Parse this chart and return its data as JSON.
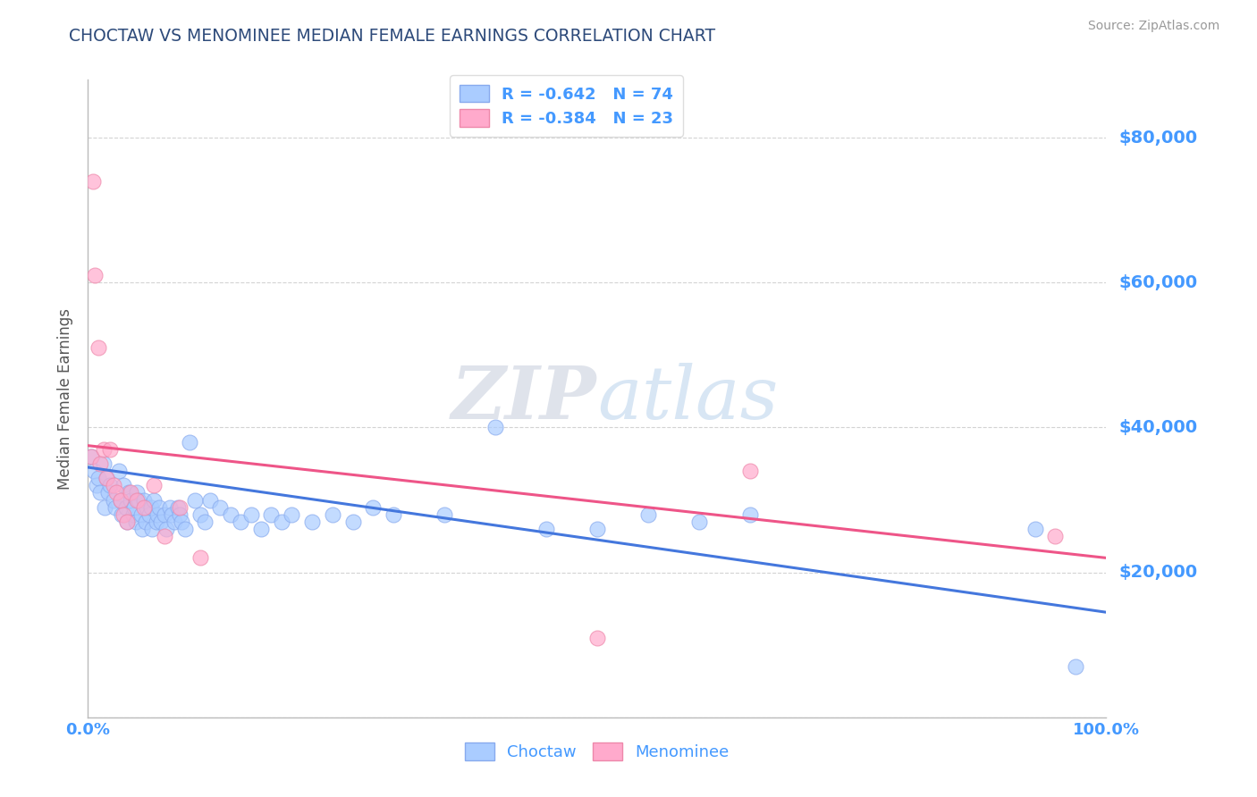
{
  "title": "CHOCTAW VS MENOMINEE MEDIAN FEMALE EARNINGS CORRELATION CHART",
  "source_text": "Source: ZipAtlas.com",
  "ylabel": "Median Female Earnings",
  "xlim": [
    0,
    1.0
  ],
  "ylim": [
    0,
    88000
  ],
  "yticks": [
    0,
    20000,
    40000,
    60000,
    80000
  ],
  "ytick_labels": [
    "",
    "$20,000",
    "$40,000",
    "$60,000",
    "$80,000"
  ],
  "xtick_labels": [
    "0.0%",
    "100.0%"
  ],
  "background_color": "#ffffff",
  "grid_color": "#c8c8c8",
  "title_color": "#2d4a7a",
  "axis_label_color": "#555555",
  "tick_label_color": "#4499ff",
  "source_color": "#999999",
  "choctaw_color": "#aaccff",
  "menominee_color": "#ffaacc",
  "choctaw_edge_color": "#88aaee",
  "menominee_edge_color": "#ee88aa",
  "choctaw_line_color": "#4477dd",
  "menominee_line_color": "#ee5588",
  "legend_choctaw_text": "R = -0.642   N = 74",
  "legend_menominee_text": "R = -0.384   N = 23",
  "legend_label_choctaw": "Choctaw",
  "legend_label_menominee": "Menominee",
  "choctaw_x": [
    0.003,
    0.006,
    0.008,
    0.01,
    0.012,
    0.015,
    0.016,
    0.018,
    0.02,
    0.022,
    0.025,
    0.027,
    0.03,
    0.032,
    0.033,
    0.035,
    0.037,
    0.038,
    0.04,
    0.042,
    0.044,
    0.045,
    0.047,
    0.048,
    0.05,
    0.052,
    0.053,
    0.055,
    0.057,
    0.058,
    0.06,
    0.062,
    0.063,
    0.065,
    0.067,
    0.068,
    0.07,
    0.072,
    0.075,
    0.077,
    0.08,
    0.082,
    0.085,
    0.088,
    0.09,
    0.092,
    0.095,
    0.1,
    0.105,
    0.11,
    0.115,
    0.12,
    0.13,
    0.14,
    0.15,
    0.16,
    0.17,
    0.18,
    0.19,
    0.2,
    0.22,
    0.24,
    0.26,
    0.28,
    0.3,
    0.35,
    0.4,
    0.45,
    0.5,
    0.55,
    0.6,
    0.65,
    0.93,
    0.97
  ],
  "choctaw_y": [
    36000,
    34000,
    32000,
    33000,
    31000,
    35000,
    29000,
    33000,
    31000,
    32000,
    30000,
    29000,
    34000,
    30000,
    28000,
    32000,
    29000,
    27000,
    31000,
    30000,
    28000,
    29000,
    27000,
    31000,
    30000,
    28000,
    26000,
    30000,
    27000,
    29000,
    28000,
    29000,
    26000,
    30000,
    27000,
    28000,
    29000,
    27000,
    28000,
    26000,
    29000,
    28000,
    27000,
    29000,
    28000,
    27000,
    26000,
    38000,
    30000,
    28000,
    27000,
    30000,
    29000,
    28000,
    27000,
    28000,
    26000,
    28000,
    27000,
    28000,
    27000,
    28000,
    27000,
    29000,
    28000,
    28000,
    40000,
    26000,
    26000,
    28000,
    27000,
    28000,
    26000,
    7000
  ],
  "menominee_x": [
    0.003,
    0.005,
    0.007,
    0.01,
    0.012,
    0.015,
    0.018,
    0.022,
    0.025,
    0.028,
    0.032,
    0.035,
    0.038,
    0.042,
    0.048,
    0.055,
    0.065,
    0.075,
    0.09,
    0.11,
    0.5,
    0.65,
    0.95
  ],
  "menominee_y": [
    36000,
    74000,
    61000,
    51000,
    35000,
    37000,
    33000,
    37000,
    32000,
    31000,
    30000,
    28000,
    27000,
    31000,
    30000,
    29000,
    32000,
    25000,
    29000,
    22000,
    11000,
    34000,
    25000
  ],
  "choctaw_line_x0": 0.0,
  "choctaw_line_y0": 34500,
  "choctaw_line_x1": 1.0,
  "choctaw_line_y1": 14500,
  "menominee_line_x0": 0.0,
  "menominee_line_y0": 37500,
  "menominee_line_x1": 1.0,
  "menominee_line_y1": 22000
}
